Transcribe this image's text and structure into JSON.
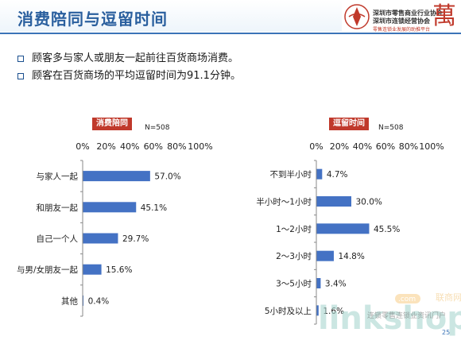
{
  "header": {
    "title": "消费陪同与逗留时间",
    "logo_line1": "深圳市零售商业行业协会",
    "logo_line2": "深圳市连锁经营协会",
    "logo_line3": "零售连锁业发展的助推平台",
    "logo_mark": "萬"
  },
  "bullets": [
    "顾客多与家人或朋友一起前往百货商场消费。",
    "顾客在百货商场的平均逗留时间为91.1分钟。"
  ],
  "watermark": {
    "brand": "linkshop",
    "com": ".com",
    "cn_name": "联商网",
    "caption": "连锁零售连锁业资讯门户"
  },
  "page_number": "25",
  "colors": {
    "bar": "#4472c4",
    "accent": "#c0392b",
    "title": "#2a5f9e"
  },
  "chart_data": [
    {
      "type": "bar",
      "orientation": "horizontal",
      "title": "消费陪同",
      "note": "N=508",
      "categories": [
        "与家人一起",
        "和朋友一起",
        "自己一个人",
        "与男/女朋友一起",
        "其他"
      ],
      "values": [
        57.0,
        45.1,
        29.7,
        15.6,
        0.4
      ],
      "value_labels": [
        "57.0%",
        "45.1%",
        "29.7%",
        "15.6%",
        "0.4%"
      ],
      "xlim": [
        0,
        100
      ],
      "ticks": [
        "0%",
        "20%",
        "40%",
        "60%",
        "80%",
        "100%"
      ],
      "grid": false,
      "tick_position": "top"
    },
    {
      "type": "bar",
      "orientation": "horizontal",
      "title": "逗留时间",
      "note": "N=508",
      "categories": [
        "不到半小时",
        "半小时～1小时",
        "1～2小时",
        "2～3小时",
        "3～5小时",
        "5小时及以上"
      ],
      "values": [
        4.7,
        30.0,
        45.5,
        14.8,
        3.4,
        1.6
      ],
      "value_labels": [
        "4.7%",
        "30.0%",
        "45.5%",
        "14.8%",
        "3.4%",
        "1.6%"
      ],
      "xlim": [
        0,
        100
      ],
      "ticks": [
        "0%",
        "20%",
        "40%",
        "60%",
        "80%",
        "100%"
      ],
      "grid": false,
      "tick_position": "top"
    }
  ]
}
